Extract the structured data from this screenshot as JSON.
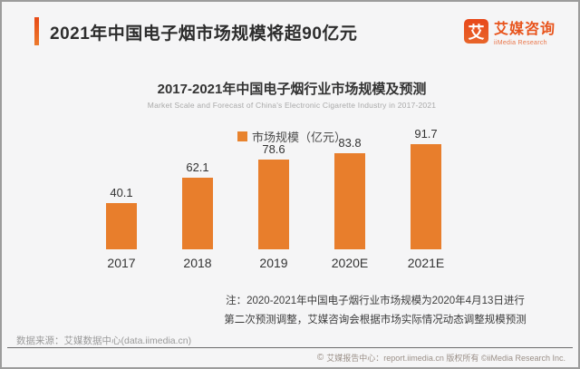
{
  "header": {
    "title": "2021年中国电子烟市场规模将超90亿元",
    "logo": {
      "mark": "艾",
      "name": "艾媒咨询",
      "sub": "iiMedia Research"
    }
  },
  "chart": {
    "title": "2017-2021年中国电子烟行业市场规模及预测",
    "subtitle": "Market Scale and Forecast of China's Electronic Cigarette Industry in 2017-2021",
    "legend": "市场规模（亿元）"
  },
  "chart_data": {
    "type": "bar",
    "categories": [
      "2017",
      "2018",
      "2019",
      "2020E",
      "2021E"
    ],
    "values": [
      40.1,
      62.1,
      78.6,
      83.8,
      91.7
    ],
    "series_name": "市场规模（亿元）",
    "title": "2017-2021年中国电子烟行业市场规模及预测",
    "subtitle": "Market Scale and Forecast of China's Electronic Cigarette Industry in 2017-2021",
    "xlabel": "",
    "ylabel": "",
    "ylim": [
      0,
      100
    ],
    "grid": false,
    "legend_position": "top-center",
    "bar_color": "#e87e2c",
    "data_labels": true
  },
  "note": {
    "line1": "注：2020-2021年中国电子烟行业市场规模为2020年4月13日进行",
    "line2": "第二次预测调整，艾媒咨询会根据市场实际情况动态调整规模预测"
  },
  "source": "数据来源：艾媒数据中心(data.iimedia.cn)",
  "footer": {
    "copyright_symbol": "©",
    "text": "艾媒报告中心：report.iimedia.cn 版权所有 ©iiMedia Research Inc."
  },
  "colors": {
    "accent": "#e8541c",
    "bar": "#e87e2c",
    "background": "#f5f5f6"
  }
}
